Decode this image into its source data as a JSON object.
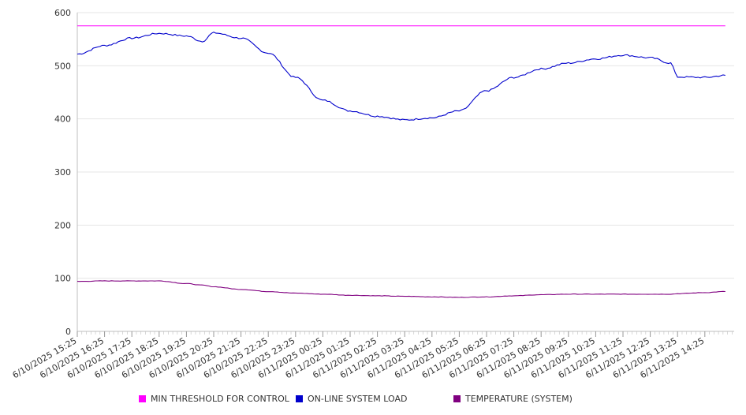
{
  "chart_data": {
    "type": "line",
    "title": "",
    "xlabel": "",
    "ylabel": "",
    "ylim": [
      0,
      600
    ],
    "yticks": [
      0,
      100,
      200,
      300,
      400,
      500,
      600
    ],
    "grid": true,
    "legend_position": "bottom",
    "x_tick_labels": [
      "6/10/2025 15:25",
      "6/10/2025 16:25",
      "6/10/2025 17:25",
      "6/10/2025 18:25",
      "6/10/2025 19:25",
      "6/10/2025 20:25",
      "6/10/2025 21:25",
      "6/10/2025 22:25",
      "6/10/2025 23:25",
      "6/11/2025 00:25",
      "6/11/2025 01:25",
      "6/11/2025 02:25",
      "6/11/2025 03:25",
      "6/11/2025 04:25",
      "6/11/2025 05:25",
      "6/11/2025 06:25",
      "6/11/2025 07:25",
      "6/11/2025 08:25",
      "6/11/2025 09:25",
      "6/11/2025 10:25",
      "6/11/2025 11:25",
      "6/11/2025 12:25",
      "6/11/2025 13:25",
      "6/11/2025 14:25"
    ],
    "x": [
      "6/10/2025 15:25",
      "6/10/2025 16:25",
      "6/10/2025 17:25",
      "6/10/2025 18:25",
      "6/10/2025 19:25",
      "6/10/2025 20:00",
      "6/10/2025 20:25",
      "6/10/2025 21:25",
      "6/10/2025 22:25",
      "6/10/2025 23:25",
      "6/11/2025 00:25",
      "6/11/2025 01:25",
      "6/11/2025 02:25",
      "6/11/2025 03:25",
      "6/11/2025 04:25",
      "6/11/2025 05:25",
      "6/11/2025 06:25",
      "6/11/2025 07:25",
      "6/11/2025 08:25",
      "6/11/2025 09:25",
      "6/11/2025 10:25",
      "6/11/2025 11:25",
      "6/11/2025 12:25",
      "6/11/2025 13:10",
      "6/11/2025 13:25",
      "6/11/2025 14:25",
      "6/11/2025 15:10"
    ],
    "series": [
      {
        "name": "MIN THRESHOLD FOR CONTROL",
        "color": "#ff00ff",
        "values": [
          575,
          575,
          575,
          575,
          575,
          575,
          575,
          575,
          575,
          575,
          575,
          575,
          575,
          575,
          575,
          575,
          575,
          575,
          575,
          575,
          575,
          575,
          575,
          575,
          575,
          575,
          575
        ]
      },
      {
        "name": "ON-LINE SYSTEM LOAD",
        "color": "#0000cc",
        "values": [
          522,
          538,
          552,
          561,
          556,
          546,
          562,
          552,
          524,
          478,
          435,
          415,
          405,
          398,
          402,
          415,
          453,
          478,
          494,
          505,
          513,
          520,
          515,
          505,
          479,
          478,
          482
        ]
      },
      {
        "name": "TEMPERATURE (SYSTEM)",
        "color": "#800080",
        "values": [
          94,
          95,
          95,
          95,
          90,
          87,
          84,
          79,
          75,
          72,
          70,
          68,
          67,
          66,
          65,
          64,
          65,
          67,
          69,
          70,
          70,
          70,
          70,
          70,
          71,
          73,
          75
        ]
      }
    ]
  }
}
